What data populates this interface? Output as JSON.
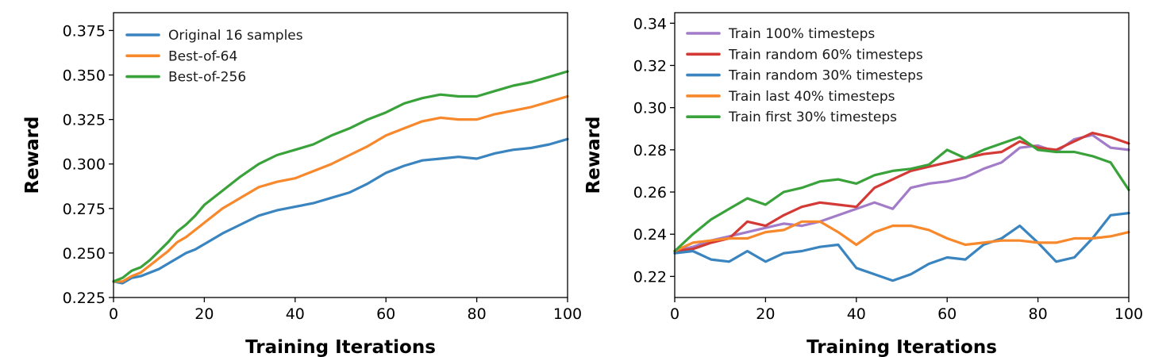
{
  "chart_data": [
    {
      "type": "line",
      "xlabel": "Training Iterations",
      "ylabel": "Reward",
      "xlim": [
        0,
        100
      ],
      "ylim": [
        0.225,
        0.385
      ],
      "xticks": [
        0,
        20,
        40,
        60,
        80,
        100
      ],
      "yticks": [
        0.225,
        0.25,
        0.275,
        0.3,
        0.325,
        0.35,
        0.375
      ],
      "ytick_labels": [
        "0.225",
        "0.250",
        "0.275",
        "0.300",
        "0.325",
        "0.350",
        "0.375"
      ],
      "legend_position": "top-left",
      "grid": false,
      "x": [
        0,
        2,
        4,
        6,
        8,
        10,
        12,
        14,
        16,
        18,
        20,
        24,
        28,
        32,
        36,
        40,
        44,
        48,
        52,
        56,
        60,
        64,
        68,
        72,
        76,
        80,
        84,
        88,
        92,
        96,
        100
      ],
      "series": [
        {
          "name": "Original 16 samples",
          "color": "#3a84bf",
          "values": [
            0.234,
            0.233,
            0.236,
            0.237,
            0.239,
            0.241,
            0.244,
            0.247,
            0.25,
            0.252,
            0.255,
            0.261,
            0.266,
            0.271,
            0.274,
            0.276,
            0.278,
            0.281,
            0.284,
            0.289,
            0.295,
            0.299,
            0.302,
            0.303,
            0.304,
            0.303,
            0.306,
            0.308,
            0.309,
            0.311,
            0.314
          ]
        },
        {
          "name": "Best-of-64",
          "color": "#f7882b",
          "values": [
            0.234,
            0.234,
            0.237,
            0.239,
            0.243,
            0.247,
            0.251,
            0.256,
            0.259,
            0.263,
            0.267,
            0.275,
            0.281,
            0.287,
            0.29,
            0.292,
            0.296,
            0.3,
            0.305,
            0.31,
            0.316,
            0.32,
            0.324,
            0.326,
            0.325,
            0.325,
            0.328,
            0.33,
            0.332,
            0.335,
            0.338
          ]
        },
        {
          "name": "Best-of-256",
          "color": "#3aa23a",
          "values": [
            0.234,
            0.236,
            0.24,
            0.242,
            0.246,
            0.251,
            0.256,
            0.262,
            0.266,
            0.271,
            0.277,
            0.285,
            0.293,
            0.3,
            0.305,
            0.308,
            0.311,
            0.316,
            0.32,
            0.325,
            0.329,
            0.334,
            0.337,
            0.339,
            0.338,
            0.338,
            0.341,
            0.344,
            0.346,
            0.349,
            0.352
          ]
        }
      ]
    },
    {
      "type": "line",
      "xlabel": "Training Iterations",
      "ylabel": "Reward",
      "xlim": [
        0,
        100
      ],
      "ylim": [
        0.21,
        0.345
      ],
      "xticks": [
        0,
        20,
        40,
        60,
        80,
        100
      ],
      "yticks": [
        0.22,
        0.24,
        0.26,
        0.28,
        0.3,
        0.32,
        0.34
      ],
      "ytick_labels": [
        "0.22",
        "0.24",
        "0.26",
        "0.28",
        "0.30",
        "0.32",
        "0.34"
      ],
      "legend_position": "top-left",
      "grid": false,
      "x": [
        0,
        4,
        8,
        12,
        16,
        20,
        24,
        28,
        32,
        36,
        40,
        44,
        48,
        52,
        56,
        60,
        64,
        68,
        72,
        76,
        80,
        84,
        88,
        92,
        96,
        100
      ],
      "series": [
        {
          "name": "Train 100% timesteps",
          "color": "#a27cc9",
          "values": [
            0.232,
            0.234,
            0.237,
            0.239,
            0.241,
            0.243,
            0.245,
            0.244,
            0.246,
            0.249,
            0.252,
            0.255,
            0.252,
            0.262,
            0.264,
            0.265,
            0.267,
            0.271,
            0.274,
            0.281,
            0.282,
            0.279,
            0.285,
            0.287,
            0.281,
            0.28
          ]
        },
        {
          "name": "Train random 60% timesteps",
          "color": "#d33a35",
          "values": [
            0.232,
            0.233,
            0.236,
            0.238,
            0.246,
            0.244,
            0.249,
            0.253,
            0.255,
            0.254,
            0.253,
            0.262,
            0.266,
            0.27,
            0.272,
            0.274,
            0.276,
            0.278,
            0.279,
            0.284,
            0.281,
            0.28,
            0.284,
            0.288,
            0.286,
            0.283
          ]
        },
        {
          "name": "Train random 30% timesteps",
          "color": "#3a84bf",
          "values": [
            0.231,
            0.232,
            0.228,
            0.227,
            0.232,
            0.227,
            0.231,
            0.232,
            0.234,
            0.235,
            0.224,
            0.221,
            0.218,
            0.221,
            0.226,
            0.229,
            0.228,
            0.235,
            0.238,
            0.244,
            0.236,
            0.227,
            0.229,
            0.238,
            0.249,
            0.25
          ]
        },
        {
          "name": "Train last 40% timesteps",
          "color": "#f7882b",
          "values": [
            0.232,
            0.236,
            0.237,
            0.238,
            0.238,
            0.241,
            0.242,
            0.246,
            0.246,
            0.241,
            0.235,
            0.241,
            0.244,
            0.244,
            0.242,
            0.238,
            0.235,
            0.236,
            0.237,
            0.237,
            0.236,
            0.236,
            0.238,
            0.238,
            0.239,
            0.241
          ]
        },
        {
          "name": "Train first 30% timesteps",
          "color": "#3aa23a",
          "values": [
            0.232,
            0.24,
            0.247,
            0.252,
            0.257,
            0.254,
            0.26,
            0.262,
            0.265,
            0.266,
            0.264,
            0.268,
            0.27,
            0.271,
            0.273,
            0.28,
            0.276,
            0.28,
            0.283,
            0.286,
            0.28,
            0.279,
            0.279,
            0.277,
            0.274,
            0.261
          ]
        }
      ]
    }
  ]
}
